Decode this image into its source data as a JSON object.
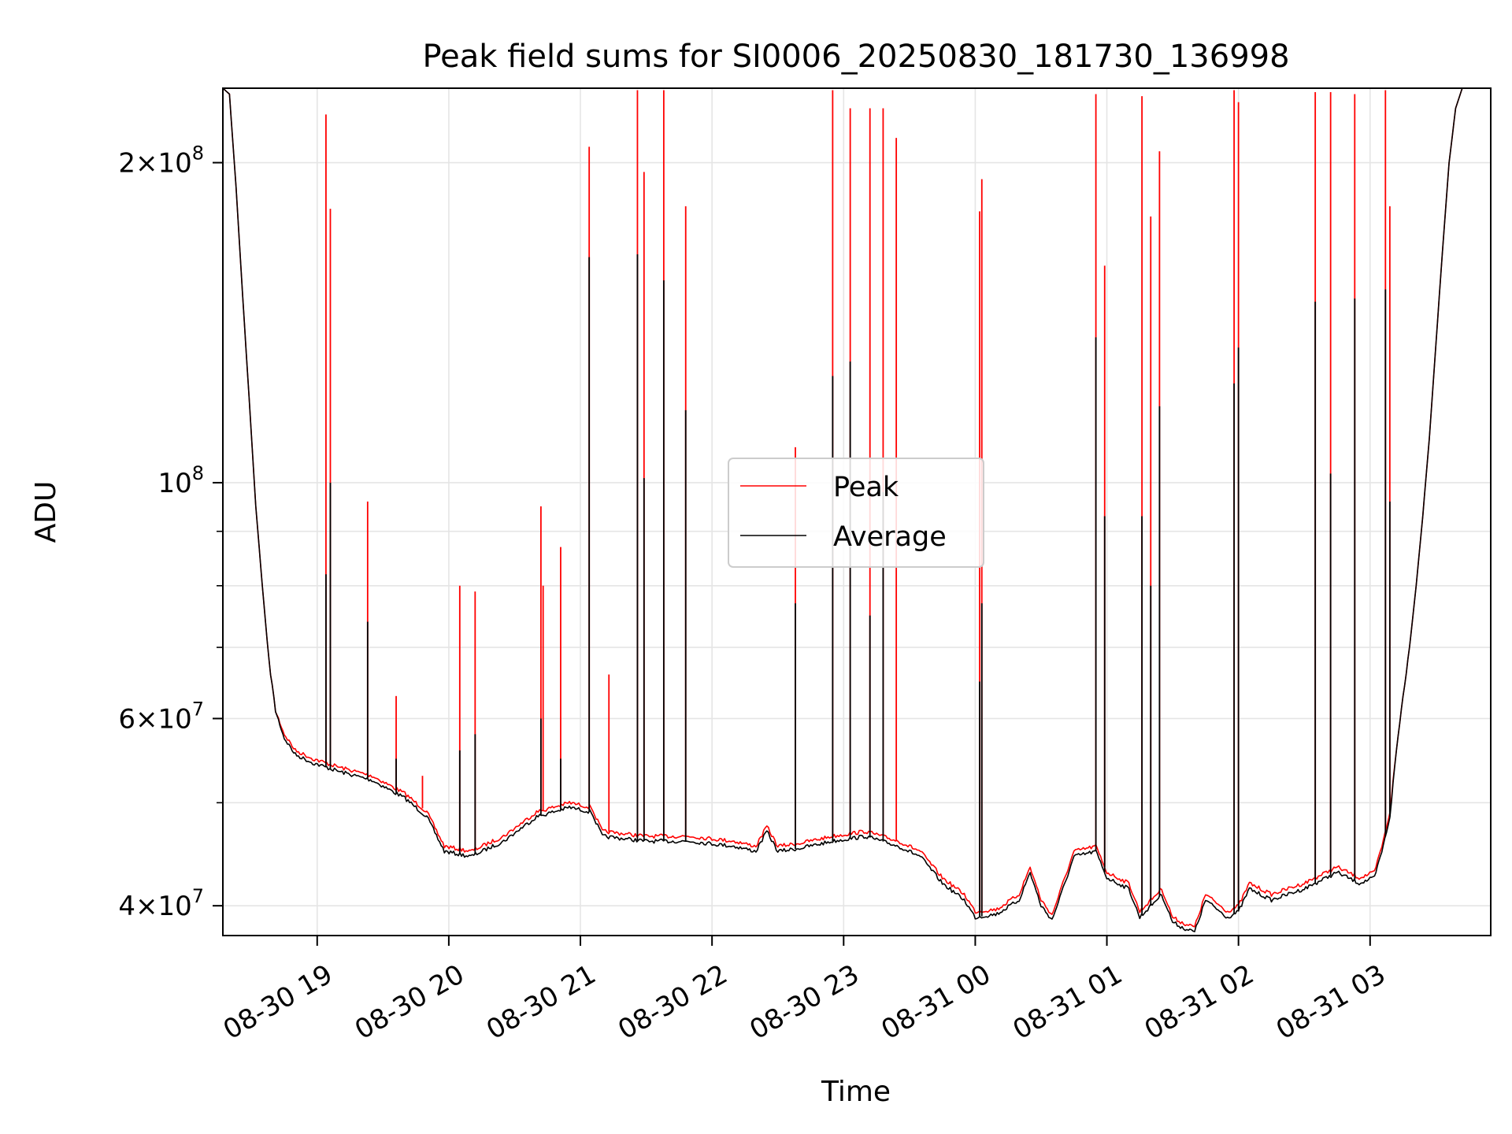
{
  "chart_data": {
    "type": "line",
    "title": "Peak field sums for SI0006_20250830_181730_136998",
    "xlabel": "Time",
    "ylabel": "ADU",
    "yscale": "log",
    "xlim": [
      "2025-08-30 18:17",
      "2025-08-31 03:55"
    ],
    "ylim": [
      37500000,
      235000000
    ],
    "grid": true,
    "legend": "center",
    "x_ticks": [
      {
        "x": "2025-08-30 19:00",
        "label": "08-30 19"
      },
      {
        "x": "2025-08-30 20:00",
        "label": "08-30 20"
      },
      {
        "x": "2025-08-30 21:00",
        "label": "08-30 21"
      },
      {
        "x": "2025-08-30 22:00",
        "label": "08-30 22"
      },
      {
        "x": "2025-08-30 23:00",
        "label": "08-30 23"
      },
      {
        "x": "2025-08-31 00:00",
        "label": "08-31 00"
      },
      {
        "x": "2025-08-31 01:00",
        "label": "08-31 01"
      },
      {
        "x": "2025-08-31 02:00",
        "label": "08-31 02"
      },
      {
        "x": "2025-08-31 03:00",
        "label": "08-31 03"
      }
    ],
    "y_ticks": [
      {
        "y": 40000000,
        "base": "4×10",
        "exp": "7"
      },
      {
        "y": 60000000,
        "base": "6×10",
        "exp": "7"
      },
      {
        "y": 100000000,
        "base": "10",
        "exp": "8"
      },
      {
        "y": 200000000,
        "base": "2×10",
        "exp": "8"
      }
    ],
    "y_minor_ticks": [
      50000000,
      70000000,
      80000000,
      90000000
    ],
    "series": [
      {
        "name": "Peak",
        "color": "#ff0000",
        "baseline": [
          [
            "2025-08-30 18:17",
            235000000
          ],
          [
            "2025-08-30 18:20",
            232000000
          ],
          [
            "2025-08-30 18:23",
            190000000
          ],
          [
            "2025-08-30 18:26",
            150000000
          ],
          [
            "2025-08-30 18:29",
            120000000
          ],
          [
            "2025-08-30 18:32",
            95000000
          ],
          [
            "2025-08-30 18:35",
            80000000
          ],
          [
            "2025-08-30 18:38",
            68000000
          ],
          [
            "2025-08-30 18:41",
            61000000
          ],
          [
            "2025-08-30 18:45",
            58000000
          ],
          [
            "2025-08-30 18:50",
            56000000
          ],
          [
            "2025-08-30 18:58",
            55000000
          ],
          [
            "2025-08-30 19:10",
            54000000
          ],
          [
            "2025-08-30 19:25",
            53000000
          ],
          [
            "2025-08-30 19:40",
            51000000
          ],
          [
            "2025-08-30 19:50",
            49000000
          ],
          [
            "2025-08-30 19:58",
            45500000
          ],
          [
            "2025-08-30 20:10",
            45000000
          ],
          [
            "2025-08-30 20:25",
            46500000
          ],
          [
            "2025-08-30 20:40",
            49000000
          ],
          [
            "2025-08-30 20:55",
            50000000
          ],
          [
            "2025-08-30 21:05",
            49500000
          ],
          [
            "2025-08-30 21:10",
            47000000
          ],
          [
            "2025-08-30 21:30",
            46500000
          ],
          [
            "2025-08-30 21:50",
            46500000
          ],
          [
            "2025-08-30 22:10",
            46000000
          ],
          [
            "2025-08-30 22:20",
            45500000
          ],
          [
            "2025-08-30 22:25",
            47500000
          ],
          [
            "2025-08-30 22:30",
            45500000
          ],
          [
            "2025-08-30 22:40",
            45800000
          ],
          [
            "2025-08-30 22:55",
            46500000
          ],
          [
            "2025-08-30 23:10",
            47000000
          ],
          [
            "2025-08-30 23:25",
            46000000
          ],
          [
            "2025-08-30 23:35",
            45000000
          ],
          [
            "2025-08-30 23:45",
            42500000
          ],
          [
            "2025-08-30 23:55",
            41000000
          ],
          [
            "2025-08-31 00:00",
            39500000
          ],
          [
            "2025-08-31 00:10",
            39700000
          ],
          [
            "2025-08-31 00:20",
            41000000
          ],
          [
            "2025-08-31 00:25",
            43500000
          ],
          [
            "2025-08-31 00:30",
            40500000
          ],
          [
            "2025-08-31 00:35",
            39200000
          ],
          [
            "2025-08-31 00:40",
            42000000
          ],
          [
            "2025-08-31 00:45",
            45000000
          ],
          [
            "2025-08-31 00:55",
            45500000
          ],
          [
            "2025-08-31 01:00",
            43000000
          ],
          [
            "2025-08-31 01:10",
            42000000
          ],
          [
            "2025-08-31 01:15",
            39500000
          ],
          [
            "2025-08-31 01:20",
            40500000
          ],
          [
            "2025-08-31 01:25",
            41500000
          ],
          [
            "2025-08-31 01:30",
            39000000
          ],
          [
            "2025-08-31 01:35",
            38500000
          ],
          [
            "2025-08-31 01:40",
            38200000
          ],
          [
            "2025-08-31 01:45",
            41000000
          ],
          [
            "2025-08-31 01:55",
            39500000
          ],
          [
            "2025-08-31 02:00",
            40000000
          ],
          [
            "2025-08-31 02:05",
            42000000
          ],
          [
            "2025-08-31 02:15",
            41000000
          ],
          [
            "2025-08-31 02:30",
            42000000
          ],
          [
            "2025-08-31 02:45",
            43500000
          ],
          [
            "2025-08-31 02:55",
            42500000
          ],
          [
            "2025-08-31 03:02",
            43000000
          ],
          [
            "2025-08-31 03:06",
            46000000
          ],
          [
            "2025-08-31 03:09",
            49000000
          ],
          [
            "2025-08-31 03:12",
            56000000
          ],
          [
            "2025-08-31 03:15",
            63000000
          ],
          [
            "2025-08-31 03:18",
            70000000
          ],
          [
            "2025-08-31 03:21",
            80000000
          ],
          [
            "2025-08-31 03:24",
            93000000
          ],
          [
            "2025-08-31 03:27",
            110000000
          ],
          [
            "2025-08-31 03:30",
            135000000
          ],
          [
            "2025-08-31 03:33",
            165000000
          ],
          [
            "2025-08-31 03:36",
            200000000
          ],
          [
            "2025-08-31 03:39",
            225000000
          ],
          [
            "2025-08-31 03:42",
            235000000
          ],
          [
            "2025-08-31 03:55",
            235000000
          ]
        ],
        "spikes": [
          [
            "2025-08-30 19:04",
            222000000
          ],
          [
            "2025-08-30 19:06",
            181000000
          ],
          [
            "2025-08-30 19:23",
            96000000
          ],
          [
            "2025-08-30 19:36",
            63000000
          ],
          [
            "2025-08-30 19:48",
            53000000
          ],
          [
            "2025-08-30 20:05",
            80000000
          ],
          [
            "2025-08-30 20:12",
            79000000
          ],
          [
            "2025-08-30 20:42",
            95000000
          ],
          [
            "2025-08-30 20:43",
            80000000
          ],
          [
            "2025-08-30 20:51",
            87000000
          ],
          [
            "2025-08-30 21:04",
            207000000
          ],
          [
            "2025-08-30 21:13",
            66000000
          ],
          [
            "2025-08-30 21:26",
            234000000
          ],
          [
            "2025-08-30 21:29",
            196000000
          ],
          [
            "2025-08-30 21:38",
            234000000
          ],
          [
            "2025-08-30 21:48",
            182000000
          ],
          [
            "2025-08-30 22:38",
            108000000
          ],
          [
            "2025-08-30 22:55",
            234000000
          ],
          [
            "2025-08-30 23:03",
            225000000
          ],
          [
            "2025-08-30 23:12",
            225000000
          ],
          [
            "2025-08-30 23:18",
            225000000
          ],
          [
            "2025-08-30 23:24",
            211000000
          ],
          [
            "2025-08-31 00:02",
            180000000
          ],
          [
            "2025-08-31 00:03",
            193000000
          ],
          [
            "2025-08-31 00:55",
            232000000
          ],
          [
            "2025-08-31 00:59",
            160000000
          ],
          [
            "2025-08-31 01:16",
            231000000
          ],
          [
            "2025-08-31 01:20",
            178000000
          ],
          [
            "2025-08-31 01:24",
            205000000
          ],
          [
            "2025-08-31 01:58",
            234000000
          ],
          [
            "2025-08-31 02:00",
            228000000
          ],
          [
            "2025-08-31 02:35",
            233000000
          ],
          [
            "2025-08-31 02:42",
            233000000
          ],
          [
            "2025-08-31 02:53",
            232000000
          ],
          [
            "2025-08-31 03:07",
            234000000
          ],
          [
            "2025-08-31 03:09",
            182000000
          ]
        ]
      },
      {
        "name": "Average",
        "color": "#000000",
        "baseline": [
          [
            "2025-08-30 18:17",
            235000000
          ],
          [
            "2025-08-30 18:20",
            232000000
          ],
          [
            "2025-08-30 18:23",
            190000000
          ],
          [
            "2025-08-30 18:26",
            150000000
          ],
          [
            "2025-08-30 18:29",
            120000000
          ],
          [
            "2025-08-30 18:32",
            95000000
          ],
          [
            "2025-08-30 18:35",
            80000000
          ],
          [
            "2025-08-30 18:38",
            68000000
          ],
          [
            "2025-08-30 18:41",
            61000000
          ],
          [
            "2025-08-30 18:45",
            57500000
          ],
          [
            "2025-08-30 18:50",
            55500000
          ],
          [
            "2025-08-30 18:58",
            54500000
          ],
          [
            "2025-08-30 19:10",
            53500000
          ],
          [
            "2025-08-30 19:25",
            52500000
          ],
          [
            "2025-08-30 19:40",
            50500000
          ],
          [
            "2025-08-30 19:50",
            48500000
          ],
          [
            "2025-08-30 19:58",
            45000000
          ],
          [
            "2025-08-30 20:10",
            44500000
          ],
          [
            "2025-08-30 20:25",
            46000000
          ],
          [
            "2025-08-30 20:40",
            48500000
          ],
          [
            "2025-08-30 20:55",
            49500000
          ],
          [
            "2025-08-30 21:05",
            49000000
          ],
          [
            "2025-08-30 21:10",
            46500000
          ],
          [
            "2025-08-30 21:30",
            46000000
          ],
          [
            "2025-08-30 21:50",
            46000000
          ],
          [
            "2025-08-30 22:10",
            45500000
          ],
          [
            "2025-08-30 22:20",
            45000000
          ],
          [
            "2025-08-30 22:25",
            47000000
          ],
          [
            "2025-08-30 22:30",
            45000000
          ],
          [
            "2025-08-30 22:40",
            45300000
          ],
          [
            "2025-08-30 22:55",
            46000000
          ],
          [
            "2025-08-30 23:10",
            46500000
          ],
          [
            "2025-08-30 23:25",
            45500000
          ],
          [
            "2025-08-30 23:35",
            44500000
          ],
          [
            "2025-08-30 23:45",
            42000000
          ],
          [
            "2025-08-30 23:55",
            40500000
          ],
          [
            "2025-08-31 00:00",
            39000000
          ],
          [
            "2025-08-31 00:10",
            39300000
          ],
          [
            "2025-08-31 00:20",
            40500000
          ],
          [
            "2025-08-31 00:25",
            43000000
          ],
          [
            "2025-08-31 00:30",
            40000000
          ],
          [
            "2025-08-31 00:35",
            38800000
          ],
          [
            "2025-08-31 00:40",
            41500000
          ],
          [
            "2025-08-31 00:45",
            44500000
          ],
          [
            "2025-08-31 00:55",
            45000000
          ],
          [
            "2025-08-31 01:00",
            42500000
          ],
          [
            "2025-08-31 01:10",
            41500000
          ],
          [
            "2025-08-31 01:15",
            39000000
          ],
          [
            "2025-08-31 01:20",
            40000000
          ],
          [
            "2025-08-31 01:25",
            41000000
          ],
          [
            "2025-08-31 01:30",
            38600000
          ],
          [
            "2025-08-31 01:35",
            38100000
          ],
          [
            "2025-08-31 01:40",
            37800000
          ],
          [
            "2025-08-31 01:45",
            40500000
          ],
          [
            "2025-08-31 01:55",
            39000000
          ],
          [
            "2025-08-31 02:00",
            39500000
          ],
          [
            "2025-08-31 02:05",
            41500000
          ],
          [
            "2025-08-31 02:15",
            40500000
          ],
          [
            "2025-08-31 02:30",
            41500000
          ],
          [
            "2025-08-31 02:45",
            43000000
          ],
          [
            "2025-08-31 02:55",
            42000000
          ],
          [
            "2025-08-31 03:02",
            42500000
          ],
          [
            "2025-08-31 03:06",
            45500000
          ],
          [
            "2025-08-31 03:09",
            48500000
          ],
          [
            "2025-08-31 03:12",
            56000000
          ],
          [
            "2025-08-31 03:15",
            63000000
          ],
          [
            "2025-08-31 03:18",
            70000000
          ],
          [
            "2025-08-31 03:21",
            80000000
          ],
          [
            "2025-08-31 03:24",
            93000000
          ],
          [
            "2025-08-31 03:27",
            110000000
          ],
          [
            "2025-08-31 03:30",
            135000000
          ],
          [
            "2025-08-31 03:33",
            165000000
          ],
          [
            "2025-08-31 03:36",
            200000000
          ],
          [
            "2025-08-31 03:39",
            225000000
          ],
          [
            "2025-08-31 03:42",
            235000000
          ],
          [
            "2025-08-31 03:55",
            235000000
          ]
        ],
        "spikes": [
          [
            "2025-08-30 19:04",
            82000000
          ],
          [
            "2025-08-30 19:06",
            100000000
          ],
          [
            "2025-08-30 19:23",
            74000000
          ],
          [
            "2025-08-30 19:36",
            55000000
          ],
          [
            "2025-08-30 20:05",
            56000000
          ],
          [
            "2025-08-30 20:12",
            58000000
          ],
          [
            "2025-08-30 20:42",
            60000000
          ],
          [
            "2025-08-30 20:51",
            55000000
          ],
          [
            "2025-08-30 21:04",
            163000000
          ],
          [
            "2025-08-30 21:26",
            164000000
          ],
          [
            "2025-08-30 21:29",
            101000000
          ],
          [
            "2025-08-30 21:38",
            155000000
          ],
          [
            "2025-08-30 21:48",
            117000000
          ],
          [
            "2025-08-30 22:38",
            77000000
          ],
          [
            "2025-08-30 22:55",
            126000000
          ],
          [
            "2025-08-30 23:03",
            130000000
          ],
          [
            "2025-08-30 23:12",
            75000000
          ],
          [
            "2025-08-30 23:18",
            98000000
          ],
          [
            "2025-08-31 00:02",
            65000000
          ],
          [
            "2025-08-31 00:03",
            77000000
          ],
          [
            "2025-08-31 00:55",
            137000000
          ],
          [
            "2025-08-31 00:59",
            93000000
          ],
          [
            "2025-08-31 01:16",
            93000000
          ],
          [
            "2025-08-31 01:20",
            80000000
          ],
          [
            "2025-08-31 01:24",
            118000000
          ],
          [
            "2025-08-31 01:58",
            124000000
          ],
          [
            "2025-08-31 02:00",
            134000000
          ],
          [
            "2025-08-31 02:35",
            148000000
          ],
          [
            "2025-08-31 02:42",
            102000000
          ],
          [
            "2025-08-31 02:53",
            149000000
          ],
          [
            "2025-08-31 03:07",
            152000000
          ],
          [
            "2025-08-31 03:09",
            96000000
          ]
        ]
      }
    ]
  }
}
